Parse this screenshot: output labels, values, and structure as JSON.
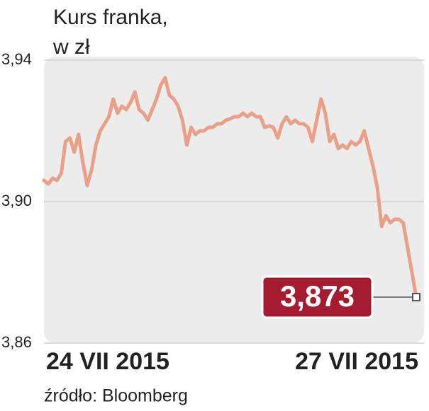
{
  "chart_data": {
    "type": "line",
    "title_lines": [
      "Kurs franka,",
      "w zł"
    ],
    "source": "źródło: Bloomberg",
    "categories": [
      "24 VII 2015",
      null,
      null,
      null,
      null,
      null,
      null,
      null,
      null,
      null,
      null,
      null,
      null,
      null,
      null,
      null,
      null,
      null,
      null,
      null,
      null,
      null,
      null,
      null,
      null,
      null,
      null,
      null,
      null,
      null,
      null,
      null,
      null,
      null,
      null,
      null,
      null,
      null,
      null,
      null,
      null,
      null,
      null,
      null,
      null,
      null,
      null,
      null,
      null,
      null,
      null,
      null,
      null,
      null,
      null,
      null,
      null,
      null,
      null,
      null,
      null,
      null,
      null,
      null,
      null,
      null,
      null,
      null,
      null,
      null,
      null,
      null,
      null,
      null,
      null,
      null,
      null,
      null,
      null,
      null,
      null,
      null,
      null,
      null,
      null,
      null,
      "27 VII 2015"
    ],
    "values": [
      3.906,
      3.905,
      3.9066,
      3.906,
      3.908,
      3.917,
      3.918,
      3.914,
      3.919,
      3.911,
      3.9046,
      3.909,
      3.916,
      3.92,
      3.922,
      3.924,
      3.929,
      3.925,
      3.927,
      3.926,
      3.928,
      3.931,
      3.926,
      3.925,
      3.923,
      3.926,
      3.929,
      3.933,
      3.935,
      3.93,
      3.929,
      3.927,
      3.923,
      3.916,
      3.921,
      3.919,
      3.92,
      3.92,
      3.921,
      3.921,
      3.922,
      3.922,
      3.923,
      3.9234,
      3.924,
      3.924,
      3.925,
      3.924,
      3.925,
      3.924,
      3.924,
      3.921,
      3.9214,
      3.921,
      3.918,
      3.922,
      3.924,
      3.922,
      3.923,
      3.922,
      3.922,
      3.921,
      3.917,
      3.923,
      3.929,
      3.925,
      3.917,
      3.919,
      3.915,
      3.916,
      3.915,
      3.917,
      3.916,
      3.917,
      3.92,
      3.915,
      3.91,
      3.904,
      3.893,
      3.896,
      3.894,
      3.895,
      3.895,
      3.894,
      3.887,
      3.88,
      3.873
    ],
    "value_labels": [
      null,
      null,
      null,
      null,
      null,
      null,
      null,
      null,
      null,
      null,
      null,
      null,
      null,
      null,
      null,
      null,
      null,
      null,
      null,
      null,
      null,
      null,
      null,
      null,
      null,
      null,
      null,
      null,
      null,
      null,
      null,
      null,
      null,
      null,
      null,
      null,
      null,
      null,
      null,
      null,
      null,
      null,
      null,
      null,
      null,
      null,
      null,
      null,
      null,
      null,
      null,
      null,
      null,
      null,
      null,
      null,
      null,
      null,
      null,
      null,
      null,
      null,
      null,
      null,
      null,
      null,
      null,
      null,
      null,
      null,
      null,
      null,
      null,
      null,
      null,
      null,
      null,
      null,
      null,
      null,
      null,
      null,
      null,
      null,
      null,
      null,
      "3,873"
    ],
    "color": "#e8a088",
    "label_color": "#a51c30",
    "ylim": [
      3.86,
      3.94
    ],
    "yticks": [
      {
        "value": 3.86,
        "label": "3,86"
      },
      {
        "value": 3.9,
        "label": "3,90"
      },
      {
        "value": 3.94,
        "label": "3,94"
      }
    ],
    "grid": true
  }
}
